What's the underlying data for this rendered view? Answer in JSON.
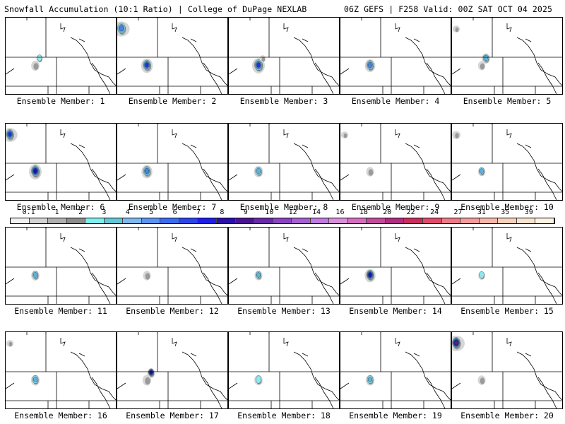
{
  "header": {
    "left": "Snowfall Accumulation (10:1 Ratio) | College of DuPage NEXLAB",
    "right": "06Z GEFS | F258 Valid: 00Z SAT OCT 04 2025"
  },
  "caption_prefix": "Ensemble Member: ",
  "members": [
    {
      "id": "1",
      "blobs": [
        [
          "ne",
          0.28,
          1
        ],
        [
          "main",
          0.5,
          0
        ]
      ]
    },
    {
      "id": "2",
      "blobs": [
        [
          "nw",
          0.95,
          3
        ],
        [
          "main",
          0.9,
          4
        ]
      ]
    },
    {
      "id": "3",
      "blobs": [
        [
          "main",
          1.0,
          4
        ],
        [
          "ne",
          0.2,
          0
        ]
      ]
    },
    {
      "id": "4",
      "blobs": [
        [
          "main",
          0.75,
          3
        ]
      ]
    },
    {
      "id": "5",
      "blobs": [
        [
          "ne",
          0.5,
          2
        ],
        [
          "main",
          0.4,
          0
        ],
        [
          "nw",
          0.2,
          0
        ]
      ]
    },
    {
      "id": "6",
      "blobs": [
        [
          "nw",
          0.85,
          4
        ],
        [
          "main",
          1.0,
          5
        ]
      ]
    },
    {
      "id": "7",
      "blobs": [
        [
          "main",
          0.8,
          3
        ]
      ]
    },
    {
      "id": "8",
      "blobs": [
        [
          "main",
          0.6,
          2
        ]
      ]
    },
    {
      "id": "9",
      "blobs": [
        [
          "main",
          0.45,
          0
        ],
        [
          "nw",
          0.2,
          0
        ]
      ]
    },
    {
      "id": "10",
      "blobs": [
        [
          "main",
          0.4,
          2
        ],
        [
          "nw",
          0.3,
          0
        ]
      ]
    },
    {
      "id": "11",
      "blobs": [
        [
          "main",
          0.5,
          2
        ]
      ]
    },
    {
      "id": "12",
      "blobs": [
        [
          "main",
          0.45,
          0
        ]
      ]
    },
    {
      "id": "13",
      "blobs": [
        [
          "main",
          0.45,
          2
        ]
      ]
    },
    {
      "id": "14",
      "blobs": [
        [
          "main",
          0.8,
          5
        ]
      ]
    },
    {
      "id": "15",
      "blobs": [
        [
          "main",
          0.35,
          1
        ]
      ]
    },
    {
      "id": "16",
      "blobs": [
        [
          "main",
          0.55,
          2
        ],
        [
          "nw",
          0.2,
          0
        ]
      ]
    },
    {
      "id": "17",
      "blobs": [
        [
          "ne",
          0.45,
          5
        ],
        [
          "main",
          0.55,
          0
        ]
      ]
    },
    {
      "id": "18",
      "blobs": [
        [
          "main",
          0.5,
          1
        ]
      ]
    },
    {
      "id": "19",
      "blobs": [
        [
          "main",
          0.55,
          2
        ]
      ]
    },
    {
      "id": "20",
      "blobs": [
        [
          "nw",
          1.0,
          6
        ],
        [
          "main",
          0.45,
          0
        ]
      ]
    }
  ],
  "colorbar": {
    "labels": [
      "0.1",
      "1",
      "2",
      "3",
      "4",
      "5",
      "6",
      "7",
      "8",
      "9",
      "10",
      "12",
      "14",
      "16",
      "18",
      "20",
      "22",
      "24",
      "27",
      "31",
      "35",
      "39"
    ],
    "colors": [
      "#f2f2f2",
      "#d4d4d4",
      "#b0b0b0",
      "#8c8c8c",
      "#7ef0ef",
      "#62c8d8",
      "#7fb8ef",
      "#5b95f0",
      "#3a6cf0",
      "#2a46e8",
      "#1e1ee8",
      "#2a10a8",
      "#4a1490",
      "#6a2aa8",
      "#8a44c0",
      "#a660d0",
      "#c07ae0",
      "#d890d8",
      "#d86cc0",
      "#c24a9c",
      "#b02e82",
      "#c82e5c",
      "#e04a6a",
      "#ee7a86",
      "#f49c9c",
      "#f6b8aa",
      "#f8d2bc",
      "#fae4cf",
      "#fdf2e4"
    ]
  },
  "snow_colors": [
    "#c6c6c6",
    "#8fe8ee",
    "#5fb0e6",
    "#4f7ee8",
    "#1e32e0",
    "#1414b8",
    "#6a1a82"
  ]
}
